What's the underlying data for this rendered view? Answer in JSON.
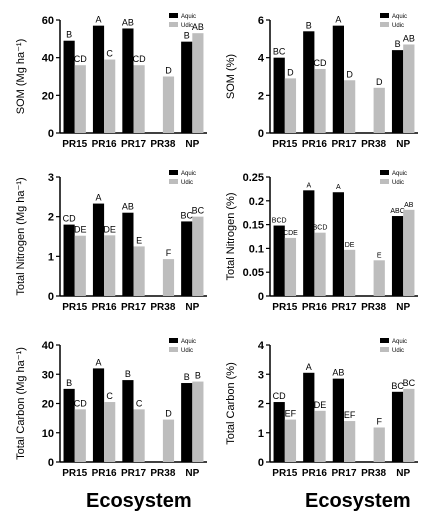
{
  "figure": {
    "x_title_left": "Ecosystem",
    "x_title_right": "Ecosystem"
  },
  "colors": {
    "aquic": "#000000",
    "udic": "#bdbdbd",
    "axis": "#000000"
  },
  "chart_data": [
    {
      "id": "som_mass",
      "type": "bar",
      "ylabel": "SOM (Mg ha⁻¹)",
      "ylim": [
        0,
        60
      ],
      "yticks": [
        0,
        20,
        40,
        60
      ],
      "categories": [
        "PR15",
        "PR16",
        "PR17",
        "PR38",
        "NP"
      ],
      "legend": [
        "Aquic",
        "Udic"
      ],
      "legend_position": "top-right",
      "grid": false,
      "series": [
        {
          "name": "Aquic",
          "values": [
            49,
            57,
            55.5,
            null,
            48.5
          ],
          "labels": [
            "B",
            "A",
            "AB",
            "",
            "B"
          ]
        },
        {
          "name": "Udic",
          "values": [
            36,
            39,
            36,
            30,
            53
          ],
          "labels": [
            "CD",
            "C",
            "CD",
            "D",
            "AB"
          ]
        }
      ]
    },
    {
      "id": "som_pct",
      "type": "bar",
      "ylabel": "SOM (%)",
      "ylim": [
        0,
        6
      ],
      "yticks": [
        0,
        2,
        4,
        6
      ],
      "categories": [
        "PR15",
        "PR16",
        "PR17",
        "PR38",
        "NP"
      ],
      "legend": [
        "Aquic",
        "Udic"
      ],
      "legend_position": "top-right",
      "grid": false,
      "series": [
        {
          "name": "Aquic",
          "values": [
            4.0,
            5.4,
            5.7,
            null,
            4.4
          ],
          "labels": [
            "BC",
            "B",
            "A",
            "",
            "B"
          ]
        },
        {
          "name": "Udic",
          "values": [
            2.9,
            3.4,
            2.8,
            2.4,
            4.7
          ],
          "labels": [
            "D",
            "CD",
            "D",
            "D",
            "AB"
          ]
        }
      ]
    },
    {
      "id": "tn_mass",
      "type": "bar",
      "ylabel": "Total Nitrogen (Mg ha⁻¹)",
      "ylim": [
        0,
        3
      ],
      "yticks": [
        0,
        1,
        2,
        3
      ],
      "categories": [
        "PR15",
        "PR16",
        "PR17",
        "PR38",
        "NP"
      ],
      "legend": [
        "Aquic",
        "Udic"
      ],
      "legend_position": "top-right",
      "grid": false,
      "series": [
        {
          "name": "Aquic",
          "values": [
            1.8,
            2.33,
            2.1,
            null,
            1.88
          ],
          "labels": [
            "CD",
            "A",
            "AB",
            "",
            "BC"
          ]
        },
        {
          "name": "Udic",
          "values": [
            1.52,
            1.53,
            1.25,
            0.93,
            2.0
          ],
          "labels": [
            "DE",
            "DE",
            "E",
            "F",
            "BC"
          ]
        }
      ]
    },
    {
      "id": "tn_pct",
      "type": "bar",
      "ylabel": "Total Nitrogen (%)",
      "ylim": [
        0,
        0.25
      ],
      "yticks": [
        0,
        0.05,
        0.1,
        0.15,
        0.2,
        0.25
      ],
      "categories": [
        "PR15",
        "PR16",
        "PR17",
        "PR38",
        "NP"
      ],
      "legend": [
        "Aquic",
        "Udic"
      ],
      "legend_position": "top-right",
      "grid": false,
      "series": [
        {
          "name": "Aquic",
          "values": [
            0.148,
            0.222,
            0.218,
            null,
            0.168
          ],
          "labels": [
            "BCD",
            "A",
            "A",
            "",
            "ABC"
          ]
        },
        {
          "name": "Udic",
          "values": [
            0.122,
            0.133,
            0.097,
            0.075,
            0.181
          ],
          "labels": [
            "CDE",
            "BCD",
            "DE",
            "E",
            "AB"
          ]
        }
      ]
    },
    {
      "id": "tc_mass",
      "type": "bar",
      "ylabel": "Total Carbon (Mg ha⁻¹)",
      "ylim": [
        0,
        40
      ],
      "yticks": [
        0,
        10,
        20,
        30,
        40
      ],
      "categories": [
        "PR15",
        "PR16",
        "PR17",
        "PR38",
        "NP"
      ],
      "legend": [
        "Aquic",
        "Udic"
      ],
      "legend_position": "top-right",
      "grid": false,
      "series": [
        {
          "name": "Aquic",
          "values": [
            25,
            32,
            28,
            null,
            27
          ],
          "labels": [
            "B",
            "A",
            "B",
            "",
            "B"
          ]
        },
        {
          "name": "Udic",
          "values": [
            18,
            20.5,
            18,
            14.5,
            27.5
          ],
          "labels": [
            "CD",
            "C",
            "C",
            "D",
            "B"
          ]
        }
      ]
    },
    {
      "id": "tc_pct",
      "type": "bar",
      "ylabel": "Total Carbon (%)",
      "ylim": [
        0,
        4
      ],
      "yticks": [
        0,
        1,
        2,
        3,
        4
      ],
      "categories": [
        "PR15",
        "PR16",
        "PR17",
        "PR38",
        "NP"
      ],
      "legend": [
        "Aquic",
        "Udic"
      ],
      "legend_position": "top-right",
      "grid": false,
      "series": [
        {
          "name": "Aquic",
          "values": [
            2.05,
            3.05,
            2.85,
            null,
            2.4
          ],
          "labels": [
            "CD",
            "A",
            "AB",
            "",
            "BC"
          ]
        },
        {
          "name": "Udic",
          "values": [
            1.45,
            1.75,
            1.4,
            1.18,
            2.5
          ],
          "labels": [
            "EF",
            "DE",
            "EF",
            "F",
            "BC"
          ]
        }
      ]
    }
  ]
}
